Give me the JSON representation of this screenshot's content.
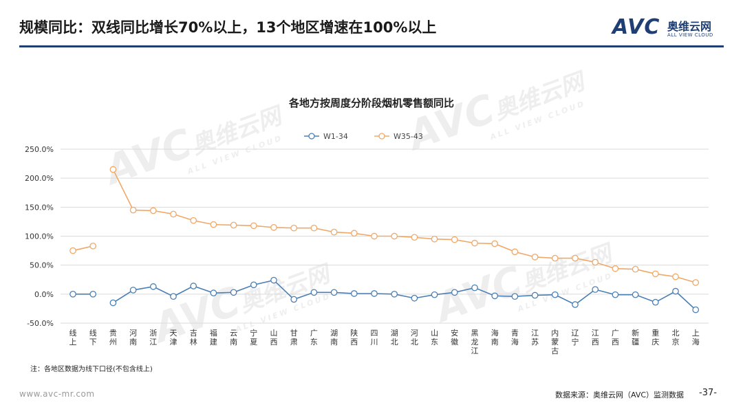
{
  "header": {
    "title": "规模同比：双线同比增长70%以上，13个地区增速在100%以上",
    "logo_mark": "AVC",
    "logo_cn": "奥维云网",
    "logo_en": "ALL VIEW CLOUD"
  },
  "watermark": {
    "mark": "AVC",
    "cn": "奥维云网",
    "en": "ALL VIEW CLOUD"
  },
  "footnote": "注：各地区数据为线下口径(不包含线上)",
  "footer": {
    "url": "www.avc-mr.com",
    "source": "数据来源：奥维云网（AVC）监测数据",
    "page": "-37-"
  },
  "colors": {
    "series1": "#4a7fb5",
    "series2": "#f0a868",
    "rule": "#1f3f74",
    "grid": "#d9d9d9"
  },
  "chart_data": {
    "type": "line",
    "title": "各地方按周度分阶段烟机零售额同比",
    "legend_position": "top",
    "grid": true,
    "ylim": [
      -50,
      250
    ],
    "yticks": [
      "-50.0%",
      "0.0%",
      "50.0%",
      "100.0%",
      "150.0%",
      "200.0%",
      "250.0%"
    ],
    "yunit": "%",
    "categories": [
      "线上",
      "线下",
      "贵州",
      "河南",
      "浙江",
      "天津",
      "吉林",
      "福建",
      "云南",
      "宁夏",
      "山西",
      "甘肃",
      "广东",
      "湖南",
      "陕西",
      "四川",
      "湖北",
      "河北",
      "山东",
      "安徽",
      "黑龙江",
      "海南",
      "青海",
      "江苏",
      "内蒙古",
      "辽宁",
      "江西",
      "广西",
      "新疆",
      "重庆",
      "北京",
      "上海"
    ],
    "series": [
      {
        "name": "W1-34",
        "values": [
          0,
          0,
          null,
          7,
          13,
          -4,
          14,
          2,
          3,
          16,
          24,
          -9,
          3,
          3,
          1,
          1,
          0,
          -7,
          -1,
          3,
          11,
          -3,
          -4,
          -2,
          -1,
          -18,
          8,
          -1,
          -1,
          -14,
          5,
          -27
        ],
        "values_b": [
          null,
          null,
          -15
        ]
      },
      {
        "name": "W35-43",
        "values": [
          75,
          83,
          215,
          145,
          144,
          138,
          127,
          120,
          119,
          118,
          115,
          114,
          114,
          107,
          105,
          100,
          100,
          98,
          95,
          94,
          88,
          87,
          73,
          64,
          62,
          62,
          55,
          44,
          43,
          35,
          30,
          20
        ]
      }
    ]
  }
}
